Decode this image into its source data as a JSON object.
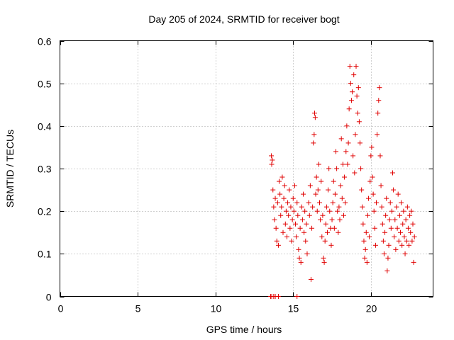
{
  "chart_data": {
    "type": "scatter",
    "title": "Day 205 of 2024, SRMTID for receiver bogt",
    "xlabel": "GPS time / hours",
    "ylabel": "SRMTID / TECUs",
    "xlim": [
      0,
      24
    ],
    "ylim": [
      0,
      0.6
    ],
    "xticks": [
      0,
      5,
      10,
      15,
      20
    ],
    "yticks": [
      0,
      0.1,
      0.2,
      0.3,
      0.4,
      0.5,
      0.6
    ],
    "ytick_labels": [
      "0",
      "0.1",
      "0.2",
      "0.3",
      "0.4",
      "0.5",
      "0.6"
    ],
    "grid": true,
    "marker": "+",
    "color": "#e00000",
    "series": [
      {
        "name": "SRMTID",
        "points": [
          [
            13.55,
            0.0
          ],
          [
            13.62,
            0.0
          ],
          [
            13.75,
            0.0
          ],
          [
            13.85,
            0.0
          ],
          [
            14.05,
            0.0
          ],
          [
            15.25,
            0.0
          ],
          [
            13.6,
            0.33
          ],
          [
            13.62,
            0.31
          ],
          [
            13.66,
            0.32
          ],
          [
            13.7,
            0.25
          ],
          [
            13.75,
            0.21
          ],
          [
            13.8,
            0.18
          ],
          [
            13.85,
            0.23
          ],
          [
            13.9,
            0.16
          ],
          [
            13.95,
            0.13
          ],
          [
            14.0,
            0.22
          ],
          [
            14.05,
            0.12
          ],
          [
            14.1,
            0.27
          ],
          [
            14.15,
            0.24
          ],
          [
            14.2,
            0.19
          ],
          [
            14.25,
            0.21
          ],
          [
            14.3,
            0.28
          ],
          [
            14.35,
            0.15
          ],
          [
            14.4,
            0.23
          ],
          [
            14.45,
            0.26
          ],
          [
            14.5,
            0.17
          ],
          [
            14.55,
            0.2
          ],
          [
            14.6,
            0.14
          ],
          [
            14.65,
            0.22
          ],
          [
            14.7,
            0.19
          ],
          [
            14.75,
            0.25
          ],
          [
            14.8,
            0.16
          ],
          [
            14.85,
            0.21
          ],
          [
            14.9,
            0.13
          ],
          [
            14.95,
            0.18
          ],
          [
            15.0,
            0.23
          ],
          [
            15.05,
            0.2
          ],
          [
            15.1,
            0.26
          ],
          [
            15.15,
            0.17
          ],
          [
            15.2,
            0.14
          ],
          [
            15.25,
            0.22
          ],
          [
            15.3,
            0.19
          ],
          [
            15.35,
            0.11
          ],
          [
            15.4,
            0.09
          ],
          [
            15.45,
            0.16
          ],
          [
            15.5,
            0.08
          ],
          [
            15.55,
            0.21
          ],
          [
            15.6,
            0.18
          ],
          [
            15.65,
            0.24
          ],
          [
            15.7,
            0.15
          ],
          [
            15.75,
            0.2
          ],
          [
            15.8,
            0.13
          ],
          [
            15.85,
            0.17
          ],
          [
            15.9,
            0.1
          ],
          [
            16.0,
            0.22
          ],
          [
            16.05,
            0.19
          ],
          [
            16.1,
            0.26
          ],
          [
            16.15,
            0.04
          ],
          [
            16.2,
            0.16
          ],
          [
            16.25,
            0.21
          ],
          [
            16.3,
            0.36
          ],
          [
            16.35,
            0.38
          ],
          [
            16.38,
            0.43
          ],
          [
            16.42,
            0.42
          ],
          [
            16.45,
            0.24
          ],
          [
            16.5,
            0.28
          ],
          [
            16.55,
            0.2
          ],
          [
            16.6,
            0.25
          ],
          [
            16.65,
            0.31
          ],
          [
            16.7,
            0.22
          ],
          [
            16.75,
            0.18
          ],
          [
            16.8,
            0.27
          ],
          [
            16.85,
            0.14
          ],
          [
            16.9,
            0.19
          ],
          [
            16.95,
            0.09
          ],
          [
            17.0,
            0.08
          ],
          [
            17.05,
            0.13
          ],
          [
            17.1,
            0.17
          ],
          [
            17.15,
            0.21
          ],
          [
            17.2,
            0.15
          ],
          [
            17.25,
            0.25
          ],
          [
            17.3,
            0.3
          ],
          [
            17.35,
            0.2
          ],
          [
            17.4,
            0.16
          ],
          [
            17.45,
            0.12
          ],
          [
            17.5,
            0.18
          ],
          [
            17.55,
            0.22
          ],
          [
            17.6,
            0.27
          ],
          [
            17.65,
            0.16
          ],
          [
            17.7,
            0.24
          ],
          [
            17.75,
            0.34
          ],
          [
            17.8,
            0.3
          ],
          [
            17.85,
            0.2
          ],
          [
            17.9,
            0.15
          ],
          [
            17.95,
            0.21
          ],
          [
            18.0,
            0.18
          ],
          [
            18.05,
            0.26
          ],
          [
            18.1,
            0.37
          ],
          [
            18.15,
            0.23
          ],
          [
            18.2,
            0.31
          ],
          [
            18.25,
            0.19
          ],
          [
            18.3,
            0.28
          ],
          [
            18.35,
            0.22
          ],
          [
            18.4,
            0.34
          ],
          [
            18.45,
            0.4
          ],
          [
            18.5,
            0.31
          ],
          [
            18.55,
            0.36
          ],
          [
            18.6,
            0.44
          ],
          [
            18.65,
            0.54
          ],
          [
            18.7,
            0.5
          ],
          [
            18.75,
            0.46
          ],
          [
            18.8,
            0.48
          ],
          [
            18.85,
            0.33
          ],
          [
            18.9,
            0.52
          ],
          [
            18.95,
            0.29
          ],
          [
            19.0,
            0.38
          ],
          [
            19.05,
            0.54
          ],
          [
            19.1,
            0.47
          ],
          [
            19.15,
            0.43
          ],
          [
            19.2,
            0.49
          ],
          [
            19.25,
            0.41
          ],
          [
            19.3,
            0.36
          ],
          [
            19.35,
            0.3
          ],
          [
            19.4,
            0.25
          ],
          [
            19.45,
            0.21
          ],
          [
            19.5,
            0.17
          ],
          [
            19.55,
            0.13
          ],
          [
            19.6,
            0.09
          ],
          [
            19.65,
            0.11
          ],
          [
            19.7,
            0.15
          ],
          [
            19.75,
            0.08
          ],
          [
            19.8,
            0.19
          ],
          [
            19.85,
            0.23
          ],
          [
            19.9,
            0.14
          ],
          [
            19.95,
            0.27
          ],
          [
            20.0,
            0.33
          ],
          [
            20.05,
            0.35
          ],
          [
            20.1,
            0.28
          ],
          [
            20.15,
            0.24
          ],
          [
            20.2,
            0.2
          ],
          [
            20.25,
            0.16
          ],
          [
            20.3,
            0.12
          ],
          [
            20.35,
            0.22
          ],
          [
            20.4,
            0.38
          ],
          [
            20.45,
            0.43
          ],
          [
            20.5,
            0.46
          ],
          [
            20.55,
            0.49
          ],
          [
            20.6,
            0.33
          ],
          [
            20.65,
            0.26
          ],
          [
            20.7,
            0.21
          ],
          [
            20.75,
            0.17
          ],
          [
            20.8,
            0.13
          ],
          [
            20.85,
            0.1
          ],
          [
            20.9,
            0.15
          ],
          [
            20.95,
            0.19
          ],
          [
            21.0,
            0.23
          ],
          [
            21.05,
            0.06
          ],
          [
            21.1,
            0.09
          ],
          [
            21.15,
            0.12
          ],
          [
            21.2,
            0.18
          ],
          [
            21.25,
            0.22
          ],
          [
            21.3,
            0.16
          ],
          [
            21.35,
            0.2
          ],
          [
            21.4,
            0.29
          ],
          [
            21.45,
            0.25
          ],
          [
            21.5,
            0.14
          ],
          [
            21.55,
            0.18
          ],
          [
            21.6,
            0.11
          ],
          [
            21.65,
            0.21
          ],
          [
            21.7,
            0.16
          ],
          [
            21.75,
            0.24
          ],
          [
            21.8,
            0.13
          ],
          [
            21.85,
            0.19
          ],
          [
            21.9,
            0.15
          ],
          [
            21.95,
            0.22
          ],
          [
            22.0,
            0.12
          ],
          [
            22.05,
            0.17
          ],
          [
            22.1,
            0.2
          ],
          [
            22.15,
            0.14
          ],
          [
            22.2,
            0.1
          ],
          [
            22.25,
            0.18
          ],
          [
            22.3,
            0.13
          ],
          [
            22.35,
            0.21
          ],
          [
            22.4,
            0.16
          ],
          [
            22.45,
            0.12
          ],
          [
            22.5,
            0.19
          ],
          [
            22.55,
            0.15
          ],
          [
            22.6,
            0.2
          ],
          [
            22.65,
            0.13
          ],
          [
            22.7,
            0.17
          ],
          [
            22.75,
            0.08
          ],
          [
            22.8,
            0.14
          ]
        ]
      }
    ]
  }
}
